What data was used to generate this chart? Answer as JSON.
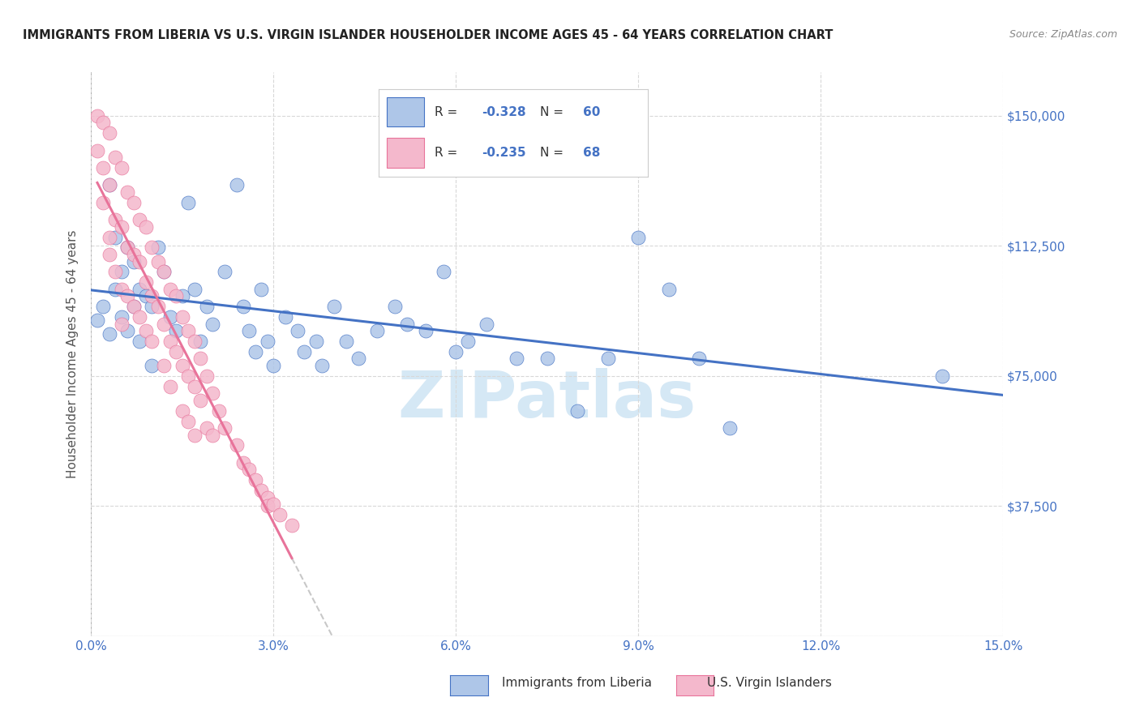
{
  "title": "IMMIGRANTS FROM LIBERIA VS U.S. VIRGIN ISLANDER HOUSEHOLDER INCOME AGES 45 - 64 YEARS CORRELATION CHART",
  "source": "Source: ZipAtlas.com",
  "ylabel": "Householder Income Ages 45 - 64 years",
  "xlim": [
    0.0,
    0.15
  ],
  "ylim": [
    0,
    162500
  ],
  "xlabel_vals": [
    0.0,
    0.03,
    0.06,
    0.09,
    0.12,
    0.15
  ],
  "xlabel_labels": [
    "0.0%",
    "3.0%",
    "6.0%",
    "9.0%",
    "12.0%",
    "15.0%"
  ],
  "ylabel_vals": [
    0,
    37500,
    75000,
    112500,
    150000
  ],
  "ylabel_labels": [
    "",
    "$37,500",
    "$75,000",
    "$112,500",
    "$150,000"
  ],
  "blue_R": "-0.328",
  "blue_N": "60",
  "pink_R": "-0.235",
  "pink_N": "68",
  "blue_scatter_color": "#aec6e8",
  "blue_edge_color": "#4472c4",
  "pink_scatter_color": "#f4b8cc",
  "pink_edge_color": "#e8739a",
  "blue_line_color": "#4472c4",
  "pink_line_color": "#e8739a",
  "dash_line_color": "#c8c8c8",
  "watermark": "ZIPatlas",
  "watermark_color": "#d5e8f5",
  "grid_color": "#d8d8d8",
  "title_color": "#222222",
  "source_color": "#888888",
  "axis_label_color": "#4472c4",
  "ylabel_color": "#555555",
  "legend_edge_color": "#cccccc",
  "blue_x": [
    0.001,
    0.002,
    0.003,
    0.003,
    0.004,
    0.004,
    0.005,
    0.005,
    0.006,
    0.006,
    0.007,
    0.007,
    0.008,
    0.008,
    0.009,
    0.01,
    0.01,
    0.011,
    0.012,
    0.013,
    0.014,
    0.015,
    0.016,
    0.017,
    0.018,
    0.019,
    0.02,
    0.022,
    0.024,
    0.025,
    0.026,
    0.027,
    0.028,
    0.029,
    0.03,
    0.032,
    0.034,
    0.035,
    0.037,
    0.038,
    0.04,
    0.042,
    0.044,
    0.047,
    0.05,
    0.052,
    0.055,
    0.058,
    0.06,
    0.062,
    0.065,
    0.07,
    0.075,
    0.08,
    0.085,
    0.09,
    0.095,
    0.1,
    0.105,
    0.14
  ],
  "blue_y": [
    91000,
    95000,
    87000,
    130000,
    100000,
    115000,
    105000,
    92000,
    112000,
    88000,
    108000,
    95000,
    100000,
    85000,
    98000,
    95000,
    78000,
    112000,
    105000,
    92000,
    88000,
    98000,
    125000,
    100000,
    85000,
    95000,
    90000,
    105000,
    130000,
    95000,
    88000,
    82000,
    100000,
    85000,
    78000,
    92000,
    88000,
    82000,
    85000,
    78000,
    95000,
    85000,
    80000,
    88000,
    95000,
    90000,
    88000,
    105000,
    82000,
    85000,
    90000,
    80000,
    80000,
    65000,
    80000,
    115000,
    100000,
    80000,
    60000,
    75000
  ],
  "pink_x": [
    0.001,
    0.001,
    0.002,
    0.002,
    0.002,
    0.003,
    0.003,
    0.003,
    0.003,
    0.004,
    0.004,
    0.004,
    0.005,
    0.005,
    0.005,
    0.005,
    0.006,
    0.006,
    0.006,
    0.007,
    0.007,
    0.007,
    0.008,
    0.008,
    0.008,
    0.009,
    0.009,
    0.009,
    0.01,
    0.01,
    0.01,
    0.011,
    0.011,
    0.012,
    0.012,
    0.012,
    0.013,
    0.013,
    0.013,
    0.014,
    0.014,
    0.015,
    0.015,
    0.015,
    0.016,
    0.016,
    0.016,
    0.017,
    0.017,
    0.017,
    0.018,
    0.018,
    0.019,
    0.019,
    0.02,
    0.02,
    0.021,
    0.022,
    0.024,
    0.025,
    0.026,
    0.027,
    0.028,
    0.029,
    0.029,
    0.03,
    0.031,
    0.033
  ],
  "pink_y": [
    150000,
    140000,
    148000,
    135000,
    125000,
    145000,
    130000,
    115000,
    110000,
    138000,
    120000,
    105000,
    135000,
    118000,
    100000,
    90000,
    128000,
    112000,
    98000,
    125000,
    110000,
    95000,
    120000,
    108000,
    92000,
    118000,
    102000,
    88000,
    112000,
    98000,
    85000,
    108000,
    95000,
    105000,
    90000,
    78000,
    100000,
    85000,
    72000,
    98000,
    82000,
    92000,
    78000,
    65000,
    88000,
    75000,
    62000,
    85000,
    72000,
    58000,
    80000,
    68000,
    75000,
    60000,
    70000,
    58000,
    65000,
    60000,
    55000,
    50000,
    48000,
    45000,
    42000,
    40000,
    37500,
    38000,
    35000,
    32000
  ]
}
